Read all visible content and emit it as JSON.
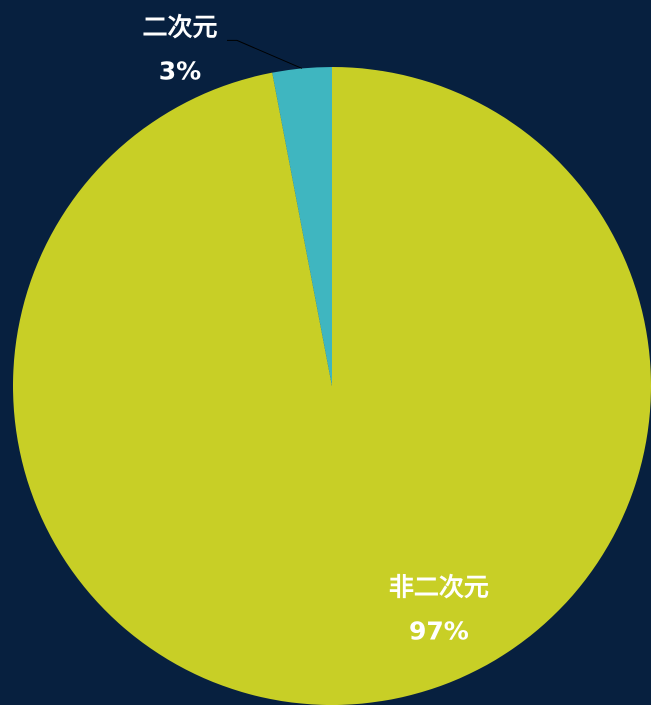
{
  "chart_data": {
    "type": "pie",
    "categories": [
      "非二次元",
      "二次元"
    ],
    "values": [
      97,
      3
    ],
    "value_labels": [
      "97%",
      "3%"
    ],
    "colors": [
      "#c8cf26",
      "#3fb6c0"
    ]
  }
}
